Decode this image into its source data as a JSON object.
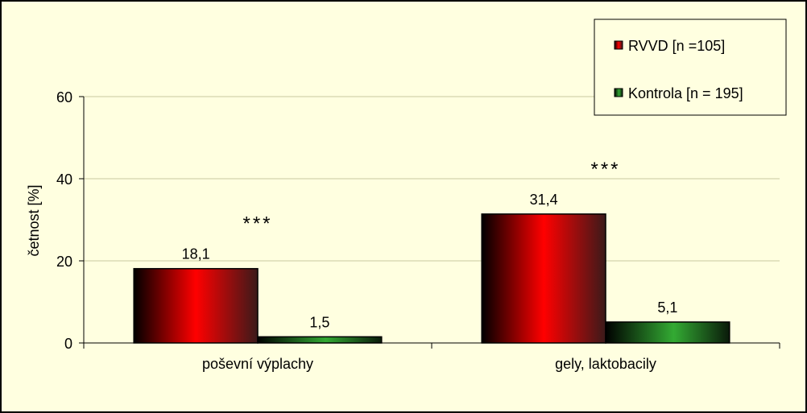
{
  "chart_data": {
    "type": "bar",
    "categories": [
      "poševní výplachy",
      "gely, laktobacily"
    ],
    "series": [
      {
        "name": "RVVD [n =105]",
        "values": [
          18.1,
          31.4
        ],
        "labels": [
          "18,1",
          "31,4"
        ],
        "color": "#ff0000"
      },
      {
        "name": "Kontrola [n = 195]",
        "values": [
          1.5,
          5.1
        ],
        "labels": [
          "1,5",
          "5,1"
        ],
        "color": "#33aa33"
      }
    ],
    "annotations": [
      "***",
      "***"
    ],
    "ylabel": "četnost [%]",
    "ylim": [
      0,
      60
    ],
    "yticks": [
      0,
      20,
      40,
      60
    ],
    "ytick_labels": [
      "0",
      "20",
      "40",
      "60"
    ],
    "grid": true,
    "legend_position": "top-right",
    "background_color": "#ffffe0"
  }
}
